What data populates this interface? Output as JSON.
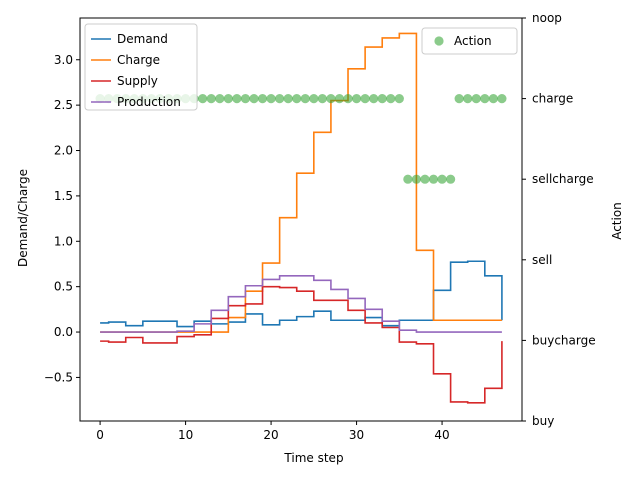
{
  "chart_data": {
    "type": "line",
    "xlabel": "Time step",
    "ylabel": "Demand/Charge",
    "y2label": "Action",
    "xlim": [
      -2.35,
      49.35
    ],
    "ylim": [
      -0.98,
      3.46
    ],
    "y2lim": [
      0,
      5
    ],
    "xticks": [
      0,
      10,
      20,
      30,
      40
    ],
    "yticks": [
      -0.5,
      0.0,
      0.5,
      1.0,
      1.5,
      2.0,
      2.5,
      3.0
    ],
    "y2ticks": [
      {
        "value": 0,
        "label": "buy"
      },
      {
        "value": 1,
        "label": "buycharge"
      },
      {
        "value": 2,
        "label": "sell"
      },
      {
        "value": 3,
        "label": "sellcharge"
      },
      {
        "value": 4,
        "label": "charge"
      },
      {
        "value": 5,
        "label": "noop"
      }
    ],
    "legend_left_position": "upper-left",
    "legend_right_position": "upper-right",
    "series": [
      {
        "name": "Demand",
        "color": "#1f77b4",
        "drawstyle": "steps-post",
        "x": [
          0,
          1,
          2,
          3,
          4,
          5,
          6,
          7,
          8,
          9,
          10,
          11,
          12,
          13,
          14,
          15,
          16,
          17,
          18,
          19,
          20,
          21,
          22,
          23,
          24,
          25,
          26,
          27,
          28,
          29,
          30,
          31,
          32,
          33,
          34,
          35,
          36,
          37,
          38,
          39,
          40,
          41,
          42,
          43,
          44,
          45,
          46,
          47
        ],
        "values": [
          0.1,
          0.11,
          0.11,
          0.07,
          0.07,
          0.12,
          0.12,
          0.12,
          0.12,
          0.06,
          0.06,
          0.12,
          0.12,
          0.09,
          0.09,
          0.11,
          0.11,
          0.2,
          0.2,
          0.08,
          0.08,
          0.13,
          0.13,
          0.17,
          0.17,
          0.23,
          0.23,
          0.13,
          0.13,
          0.13,
          0.13,
          0.16,
          0.16,
          0.07,
          0.07,
          0.13,
          0.13,
          0.13,
          0.13,
          0.46,
          0.46,
          0.77,
          0.77,
          0.78,
          0.78,
          0.62,
          0.62,
          0.13
        ]
      },
      {
        "name": "Charge",
        "color": "#ff7f0e",
        "drawstyle": "steps-post",
        "x": [
          0,
          1,
          2,
          3,
          4,
          5,
          6,
          7,
          8,
          9,
          10,
          11,
          12,
          13,
          14,
          15,
          16,
          17,
          18,
          19,
          20,
          21,
          22,
          23,
          24,
          25,
          26,
          27,
          28,
          29,
          30,
          31,
          32,
          33,
          34,
          35,
          36,
          37,
          38,
          39,
          40,
          41,
          42,
          43,
          44,
          45,
          46,
          47
        ],
        "values": [
          0,
          0,
          0,
          0,
          0,
          0,
          0,
          0,
          0,
          0,
          0,
          0,
          0,
          0,
          0,
          0.16,
          0.16,
          0.45,
          0.45,
          0.76,
          0.76,
          1.26,
          1.26,
          1.75,
          1.75,
          2.2,
          2.2,
          2.55,
          2.55,
          2.9,
          2.9,
          3.14,
          3.14,
          3.24,
          3.24,
          3.29,
          3.29,
          0.9,
          0.9,
          0.13,
          0.13,
          0.13,
          0.13,
          0.13,
          0.13,
          0.13,
          0.13,
          0.13
        ]
      },
      {
        "name": "Supply",
        "color": "#d62728",
        "drawstyle": "steps-post",
        "x": [
          0,
          1,
          2,
          3,
          4,
          5,
          6,
          7,
          8,
          9,
          10,
          11,
          12,
          13,
          14,
          15,
          16,
          17,
          18,
          19,
          20,
          21,
          22,
          23,
          24,
          25,
          26,
          27,
          28,
          29,
          30,
          31,
          32,
          33,
          34,
          35,
          36,
          37,
          38,
          39,
          40,
          41,
          42,
          43,
          44,
          45,
          46,
          47
        ],
        "values": [
          -0.1,
          -0.11,
          -0.11,
          -0.06,
          -0.06,
          -0.12,
          -0.12,
          -0.12,
          -0.12,
          -0.05,
          -0.05,
          -0.03,
          -0.03,
          0.15,
          0.15,
          0.29,
          0.29,
          0.31,
          0.31,
          0.5,
          0.5,
          0.49,
          0.49,
          0.45,
          0.45,
          0.35,
          0.35,
          0.35,
          0.35,
          0.24,
          0.24,
          0.1,
          0.1,
          0.05,
          0.05,
          -0.11,
          -0.11,
          -0.13,
          -0.13,
          -0.46,
          -0.46,
          -0.77,
          -0.77,
          -0.78,
          -0.78,
          -0.62,
          -0.62,
          -0.1
        ]
      },
      {
        "name": "Production",
        "color": "#9467bd",
        "drawstyle": "steps-post",
        "x": [
          0,
          1,
          2,
          3,
          4,
          5,
          6,
          7,
          8,
          9,
          10,
          11,
          12,
          13,
          14,
          15,
          16,
          17,
          18,
          19,
          20,
          21,
          22,
          23,
          24,
          25,
          26,
          27,
          28,
          29,
          30,
          31,
          32,
          33,
          34,
          35,
          36,
          37,
          38,
          39,
          40,
          41,
          42,
          43,
          44,
          45,
          46,
          47
        ],
        "values": [
          0,
          0,
          0,
          0,
          0,
          0,
          0,
          0,
          0,
          0.01,
          0.01,
          0.09,
          0.09,
          0.24,
          0.24,
          0.39,
          0.39,
          0.51,
          0.51,
          0.58,
          0.58,
          0.62,
          0.62,
          0.62,
          0.62,
          0.57,
          0.57,
          0.47,
          0.47,
          0.37,
          0.37,
          0.25,
          0.25,
          0.12,
          0.12,
          0.02,
          0.02,
          0,
          0,
          0,
          0,
          0,
          0,
          0,
          0,
          0,
          0,
          0
        ]
      }
    ],
    "action_series": {
      "name": "Action",
      "color": "#2ca02c",
      "alpha": 0.55,
      "axis": "right",
      "x": [
        0,
        1,
        2,
        3,
        4,
        5,
        6,
        7,
        8,
        9,
        10,
        11,
        12,
        13,
        14,
        15,
        16,
        17,
        18,
        19,
        20,
        21,
        22,
        23,
        24,
        25,
        26,
        27,
        28,
        29,
        30,
        31,
        32,
        33,
        34,
        35,
        36,
        37,
        38,
        39,
        40,
        41,
        42,
        43,
        44,
        45,
        46,
        47
      ],
      "values": [
        4,
        4,
        4,
        4,
        4,
        4,
        4,
        4,
        4,
        4,
        4,
        4,
        4,
        4,
        4,
        4,
        4,
        4,
        4,
        4,
        4,
        4,
        4,
        4,
        4,
        4,
        4,
        4,
        4,
        4,
        4,
        4,
        4,
        4,
        4,
        4,
        3,
        3,
        3,
        3,
        3,
        3,
        4,
        4,
        4,
        4,
        4,
        4
      ]
    }
  }
}
